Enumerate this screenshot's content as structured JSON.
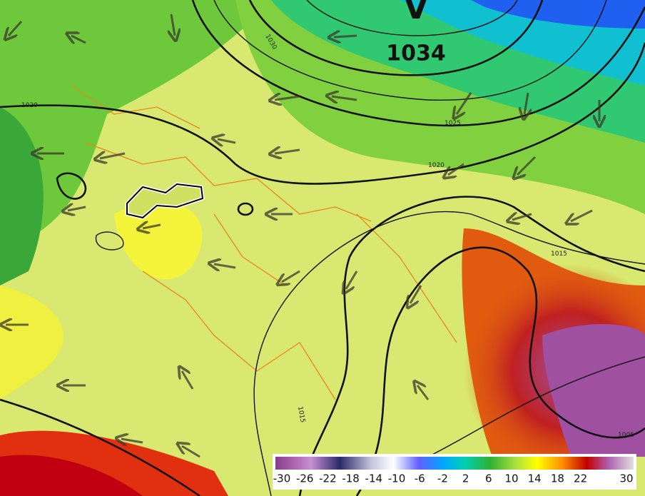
{
  "high_pressure": {
    "letter": "V",
    "value": 1034
  },
  "isobar_labels": [
    1030,
    1020,
    1025,
    1020,
    1015,
    1015,
    1005
  ],
  "legend": {
    "labels": [
      -30,
      -26,
      -22,
      -18,
      -14,
      -10,
      -6,
      -2,
      2,
      6,
      10,
      14,
      18,
      22,
      30
    ]
  }
}
